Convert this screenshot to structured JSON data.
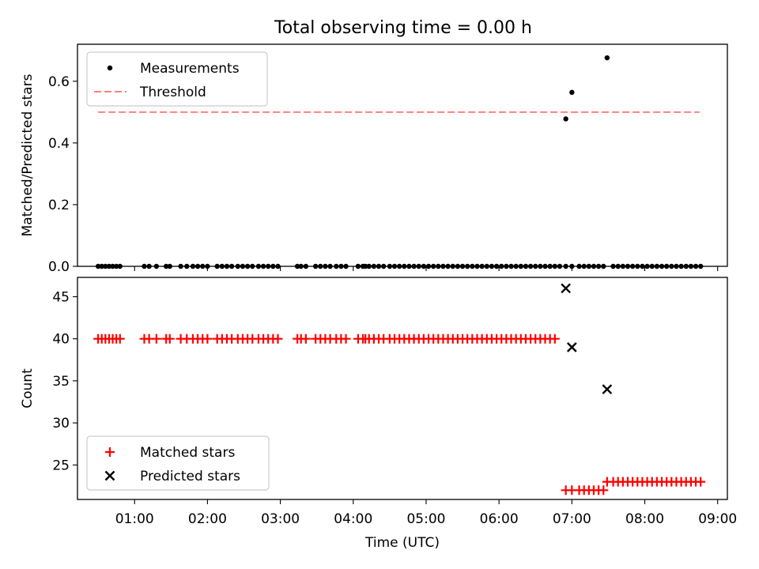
{
  "figure": {
    "title": "Total observing time = 0.00 h"
  },
  "chart_data": [
    {
      "type": "scatter",
      "title": "Total observing time = 0.00 h",
      "xlabel": "",
      "ylabel": "Matched/Predicted stars",
      "xlim": [
        "00:13",
        "09:08"
      ],
      "ylim": [
        0,
        0.72
      ],
      "yticks": [
        0.0,
        0.2,
        0.4,
        0.6
      ],
      "ytick_labels": [
        "0.0",
        "0.2",
        "0.4",
        "0.6"
      ],
      "legend": {
        "placement": "top-left",
        "entries": [
          "Measurements",
          "Threshold"
        ]
      },
      "threshold": {
        "name": "Threshold",
        "value": 0.5,
        "x_range": [
          "00:30",
          "08:45"
        ],
        "color": "#ff7f7f"
      },
      "series": [
        {
          "name": "Measurements",
          "color": "#000000",
          "x": [
            "00:30",
            "00:33",
            "00:36",
            "00:39",
            "00:42",
            "00:45",
            "00:48",
            "01:08",
            "01:12",
            "01:18",
            "01:26",
            "01:29",
            "01:38",
            "01:43",
            "01:48",
            "01:52",
            "01:56",
            "02:00",
            "02:08",
            "02:12",
            "02:16",
            "02:20",
            "02:25",
            "02:29",
            "02:33",
            "02:37",
            "02:42",
            "02:46",
            "02:50",
            "02:54",
            "02:58",
            "03:14",
            "03:17",
            "03:21",
            "03:29",
            "03:33",
            "03:37",
            "03:41",
            "03:46",
            "03:50",
            "03:54",
            "04:04",
            "04:08",
            "04:10",
            "04:13",
            "04:17",
            "04:21",
            "04:25",
            "04:30",
            "04:34",
            "04:38",
            "04:42",
            "04:46",
            "04:50",
            "04:54",
            "04:58",
            "05:02",
            "05:06",
            "05:10",
            "05:14",
            "05:18",
            "05:22",
            "05:26",
            "05:30",
            "05:34",
            "05:38",
            "05:42",
            "05:46",
            "05:50",
            "05:54",
            "05:58",
            "06:02",
            "06:06",
            "06:10",
            "06:14",
            "06:18",
            "06:22",
            "06:26",
            "06:30",
            "06:34",
            "06:38",
            "06:42",
            "06:46",
            "06:50",
            "06:55",
            "07:00",
            "07:06",
            "07:10",
            "07:14",
            "07:18",
            "07:22",
            "07:26",
            "07:34",
            "07:38",
            "07:42",
            "07:46",
            "07:50",
            "07:54",
            "07:58",
            "08:02",
            "08:06",
            "08:10",
            "08:14",
            "08:18",
            "08:22",
            "08:26",
            "08:30",
            "08:34",
            "08:38",
            "08:42",
            "08:46",
            "06:55",
            "07:00",
            "07:29"
          ],
          "y": [
            0,
            0,
            0,
            0,
            0,
            0,
            0,
            0,
            0,
            0,
            0,
            0,
            0,
            0,
            0,
            0,
            0,
            0,
            0,
            0,
            0,
            0,
            0,
            0,
            0,
            0,
            0,
            0,
            0,
            0,
            0,
            0,
            0,
            0,
            0,
            0,
            0,
            0,
            0,
            0,
            0,
            0,
            0,
            0,
            0,
            0,
            0,
            0,
            0,
            0,
            0,
            0,
            0,
            0,
            0,
            0,
            0,
            0,
            0,
            0,
            0,
            0,
            0,
            0,
            0,
            0,
            0,
            0,
            0,
            0,
            0,
            0,
            0,
            0,
            0,
            0,
            0,
            0,
            0,
            0,
            0,
            0,
            0,
            0,
            0,
            0,
            0,
            0,
            0,
            0,
            0,
            0,
            0,
            0,
            0,
            0,
            0,
            0,
            0,
            0,
            0,
            0,
            0,
            0,
            0,
            0,
            0,
            0,
            0,
            0,
            0,
            0.478,
            0.564,
            0.676
          ]
        }
      ]
    },
    {
      "type": "scatter",
      "title": "",
      "xlabel": "Time (UTC)",
      "ylabel": "Count",
      "xlim": [
        "00:13",
        "09:08"
      ],
      "ylim": [
        20.9,
        47.3
      ],
      "yticks": [
        25,
        30,
        35,
        40,
        45
      ],
      "ytick_labels": [
        "25",
        "30",
        "35",
        "40",
        "45"
      ],
      "xticks": [
        "01:00",
        "02:00",
        "03:00",
        "04:00",
        "05:00",
        "06:00",
        "07:00",
        "08:00",
        "09:00"
      ],
      "legend": {
        "placement": "bottom-left",
        "entries": [
          "Matched stars",
          "Predicted stars"
        ]
      },
      "series": [
        {
          "name": "Matched stars",
          "marker": "+",
          "color": "#ff0000",
          "x": [
            "00:30",
            "00:33",
            "00:36",
            "00:39",
            "00:42",
            "00:45",
            "00:48",
            "01:08",
            "01:12",
            "01:18",
            "01:26",
            "01:29",
            "01:38",
            "01:43",
            "01:48",
            "01:52",
            "01:56",
            "02:00",
            "02:08",
            "02:12",
            "02:16",
            "02:20",
            "02:25",
            "02:29",
            "02:33",
            "02:37",
            "02:42",
            "02:46",
            "02:50",
            "02:54",
            "02:58",
            "03:14",
            "03:17",
            "03:21",
            "03:29",
            "03:33",
            "03:37",
            "03:41",
            "03:46",
            "03:50",
            "03:54",
            "04:04",
            "04:08",
            "04:10",
            "04:13",
            "04:17",
            "04:21",
            "04:25",
            "04:30",
            "04:34",
            "04:38",
            "04:42",
            "04:46",
            "04:50",
            "04:54",
            "04:58",
            "05:02",
            "05:06",
            "05:10",
            "05:14",
            "05:18",
            "05:22",
            "05:26",
            "05:30",
            "05:34",
            "05:38",
            "05:42",
            "05:46",
            "05:50",
            "05:54",
            "05:58",
            "06:02",
            "06:06",
            "06:10",
            "06:14",
            "06:18",
            "06:22",
            "06:26",
            "06:30",
            "06:34",
            "06:38",
            "06:42",
            "06:46",
            "06:55",
            "07:00",
            "07:06",
            "07:10",
            "07:14",
            "07:18",
            "07:22",
            "07:26",
            "07:29",
            "07:34",
            "07:38",
            "07:42",
            "07:46",
            "07:50",
            "07:54",
            "07:58",
            "08:02",
            "08:06",
            "08:10",
            "08:14",
            "08:18",
            "08:22",
            "08:26",
            "08:30",
            "08:34",
            "08:38",
            "08:42",
            "08:46"
          ],
          "y": [
            40,
            40,
            40,
            40,
            40,
            40,
            40,
            40,
            40,
            40,
            40,
            40,
            40,
            40,
            40,
            40,
            40,
            40,
            40,
            40,
            40,
            40,
            40,
            40,
            40,
            40,
            40,
            40,
            40,
            40,
            40,
            40,
            40,
            40,
            40,
            40,
            40,
            40,
            40,
            40,
            40,
            40,
            40,
            40,
            40,
            40,
            40,
            40,
            40,
            40,
            40,
            40,
            40,
            40,
            40,
            40,
            40,
            40,
            40,
            40,
            40,
            40,
            40,
            40,
            40,
            40,
            40,
            40,
            40,
            40,
            40,
            40,
            40,
            40,
            40,
            40,
            40,
            40,
            40,
            40,
            40,
            40,
            40,
            22,
            22,
            22,
            22,
            22,
            22,
            22,
            22,
            23,
            23,
            23,
            23,
            23,
            23,
            23,
            23,
            23,
            23,
            23,
            23,
            23,
            23,
            23,
            23,
            23,
            23,
            23,
            23
          ]
        },
        {
          "name": "Predicted stars",
          "marker": "x",
          "color": "#000000",
          "x": [
            "06:55",
            "07:00",
            "07:29"
          ],
          "y": [
            46,
            39,
            34
          ]
        }
      ]
    }
  ]
}
